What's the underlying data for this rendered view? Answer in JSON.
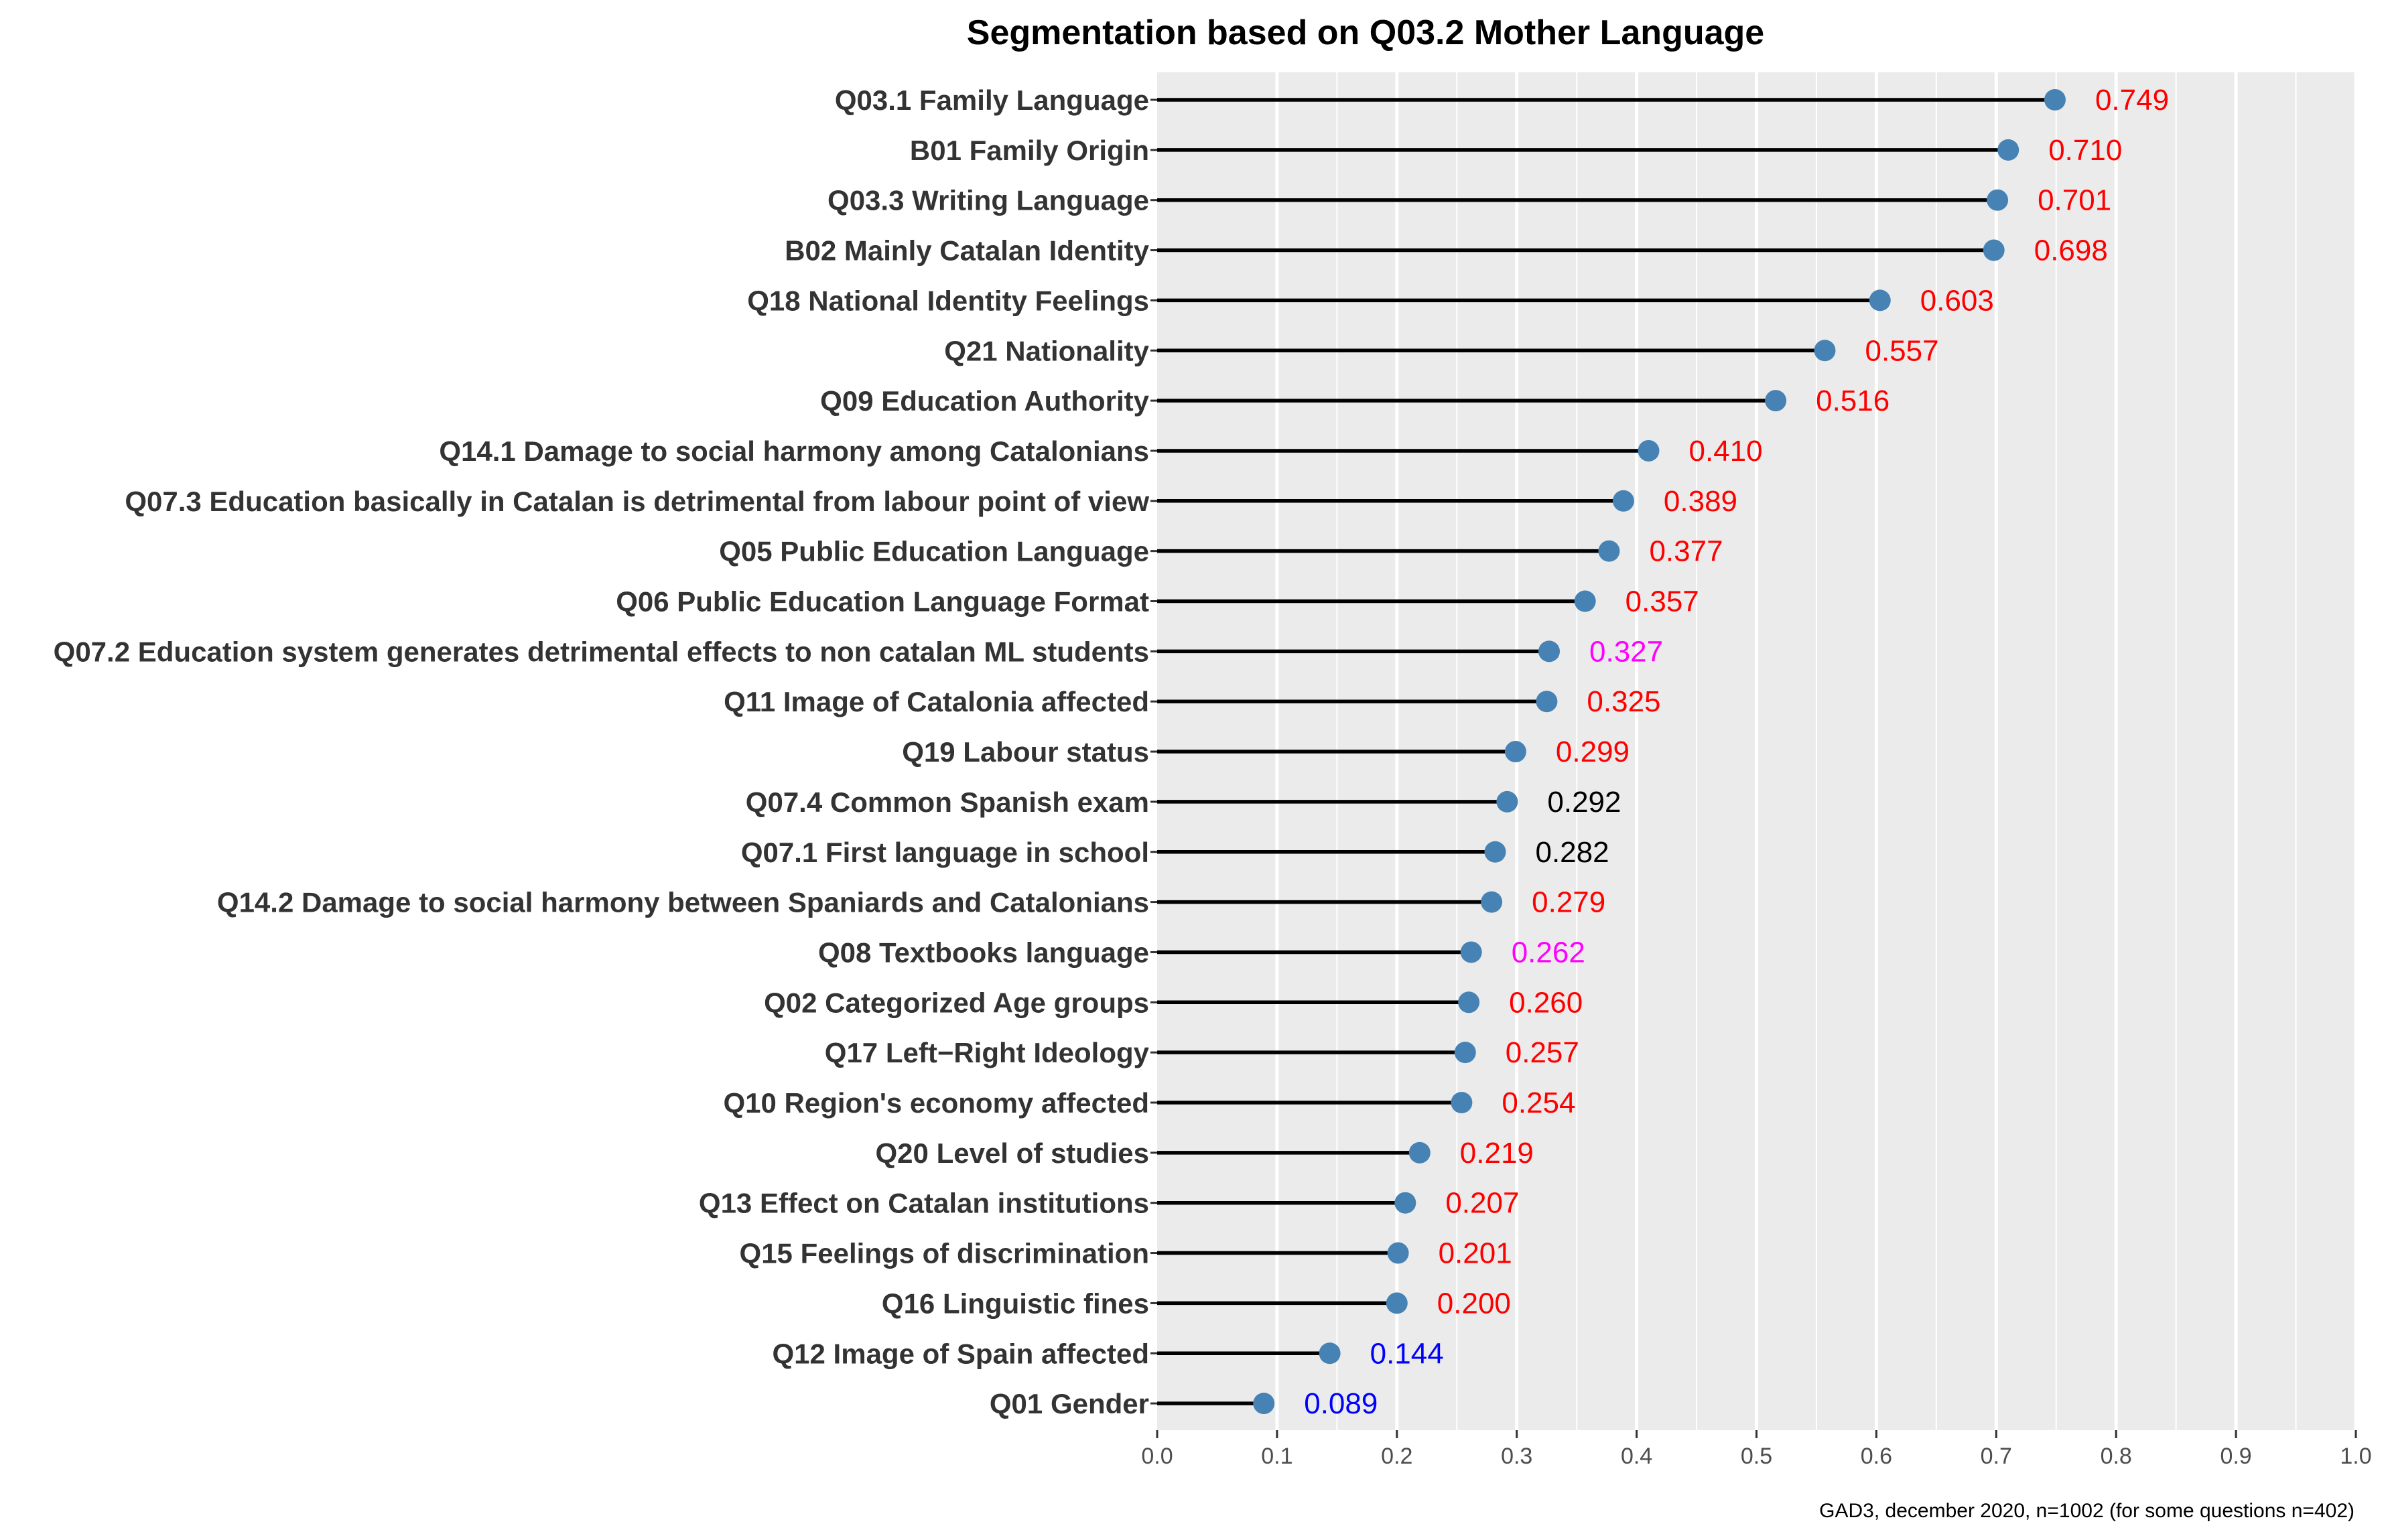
{
  "chart_data": {
    "type": "lollipop",
    "title": "Segmentation based on  Q03.2 Mother Language",
    "caption": "GAD3, december 2020, n=1002 (for some questions n=402)",
    "xlabel": "",
    "ylabel": "",
    "xlim": [
      0,
      1
    ],
    "x_ticks": [
      0.0,
      0.1,
      0.2,
      0.3,
      0.4,
      0.5,
      0.6,
      0.7,
      0.8,
      0.9,
      1.0
    ],
    "x_tick_labels": [
      "0.0",
      "0.1",
      "0.2",
      "0.3",
      "0.4",
      "0.5",
      "0.6",
      "0.7",
      "0.8",
      "0.9",
      "1.0"
    ],
    "grid": true,
    "categories": [
      "Q03.1 Family Language",
      "B01 Family Origin",
      "Q03.3 Writing Language",
      "B02 Mainly Catalan Identity",
      "Q18 National Identity Feelings",
      "Q21 Nationality",
      "Q09 Education Authority",
      "Q14.1 Damage to social harmony among Catalonians",
      "Q07.3 Education basically in Catalan is detrimental from labour point of view",
      "Q05 Public Education Language",
      "Q06 Public Education Language Format",
      "Q07.2 Education system generates detrimental effects to non catalan ML students",
      "Q11 Image of Catalonia affected",
      "Q19 Labour status",
      "Q07.4 Common Spanish exam",
      "Q07.1 First language in school",
      "Q14.2 Damage to social harmony between Spaniards and Catalonians",
      "Q08 Textbooks language",
      "Q02 Categorized Age groups",
      "Q17 Left−Right Ideology",
      "Q10 Region's economy affected",
      "Q20 Level of studies",
      "Q13 Effect on Catalan institutions",
      "Q15 Feelings of discrimination",
      "Q16 Linguistic fines",
      "Q12 Image of Spain affected",
      "Q01 Gender"
    ],
    "values": [
      0.749,
      0.71,
      0.701,
      0.698,
      0.603,
      0.557,
      0.516,
      0.41,
      0.389,
      0.377,
      0.357,
      0.327,
      0.325,
      0.299,
      0.292,
      0.282,
      0.279,
      0.262,
      0.26,
      0.257,
      0.254,
      0.219,
      0.207,
      0.201,
      0.2,
      0.144,
      0.089
    ],
    "value_labels": [
      "0.749",
      "0.710",
      "0.701",
      "0.698",
      "0.603",
      "0.557",
      "0.516",
      "0.410",
      "0.389",
      "0.377",
      "0.357",
      "0.327",
      "0.325",
      "0.299",
      "0.292",
      "0.282",
      "0.279",
      "0.262",
      "0.260",
      "0.257",
      "0.254",
      "0.219",
      "0.207",
      "0.201",
      "0.200",
      "0.144",
      "0.089"
    ],
    "label_colors": [
      "#ff0000",
      "#ff0000",
      "#ff0000",
      "#ff0000",
      "#ff0000",
      "#ff0000",
      "#ff0000",
      "#ff0000",
      "#ff0000",
      "#ff0000",
      "#ff0000",
      "#ff00ff",
      "#ff0000",
      "#ff0000",
      "#000000",
      "#000000",
      "#ff0000",
      "#ff00ff",
      "#ff0000",
      "#ff0000",
      "#ff0000",
      "#ff0000",
      "#ff0000",
      "#ff0000",
      "#ff0000",
      "#0000ff",
      "#0000ff"
    ],
    "colors": {
      "point": "#4682b4",
      "stem": "#000000",
      "panel": "#ebebeb",
      "grid": "#ffffff",
      "axis_text": "#4d4d4d",
      "category_text": "#333333",
      "title_text": "#000000"
    }
  }
}
